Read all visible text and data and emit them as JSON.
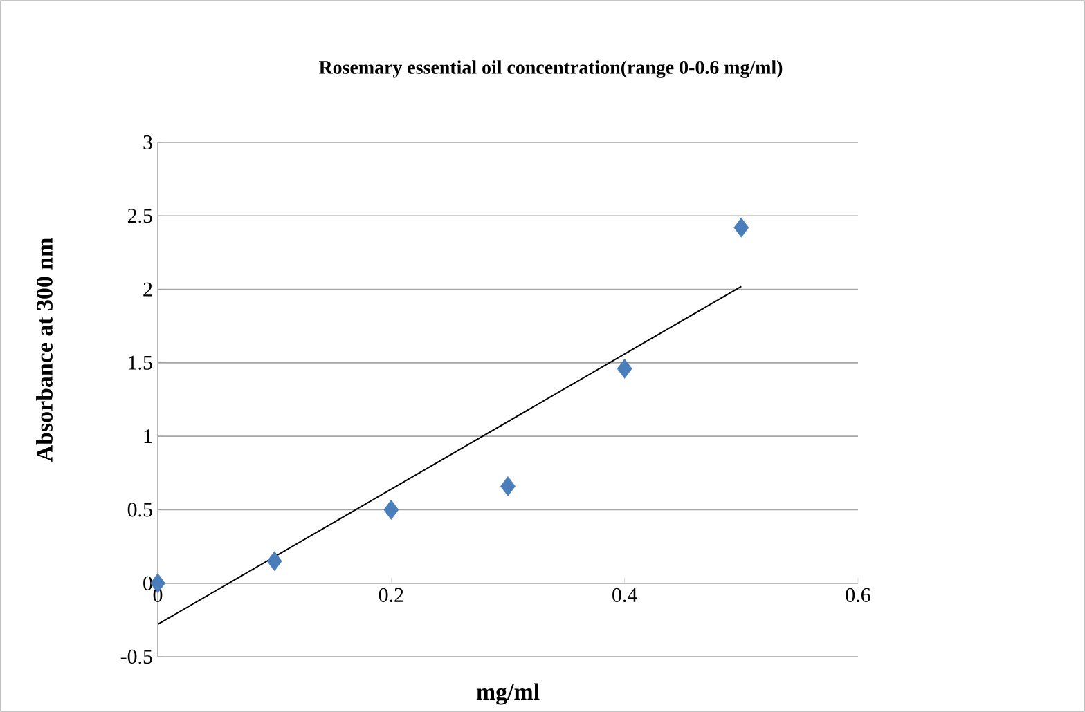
{
  "chart_data": {
    "type": "scatter",
    "title": "Rosemary essential oil concentration(range  0-0.6 mg/ml)",
    "xlabel": "mg/ml",
    "ylabel": "Absorbance  at 300 nm",
    "xlim": [
      0,
      0.6
    ],
    "xticks": [
      0,
      0.2,
      0.4,
      0.6
    ],
    "ylim": [
      -0.5,
      3
    ],
    "yticks": [
      -0.5,
      0,
      0.5,
      1,
      1.5,
      2,
      2.5,
      3
    ],
    "grid": "y",
    "series": [
      {
        "color": "#4a7ebb",
        "marker": "diamond",
        "x": [
          0,
          0.1,
          0.2,
          0.3,
          0.4,
          0.5
        ],
        "values": [
          0,
          0.15,
          0.5,
          0.66,
          1.46,
          2.42
        ]
      },
      {
        "type": "line",
        "color": "#000000",
        "marker": "none",
        "line_style": "solid",
        "x": [
          0,
          0.5
        ],
        "values": [
          -0.28,
          2.02
        ]
      }
    ]
  }
}
